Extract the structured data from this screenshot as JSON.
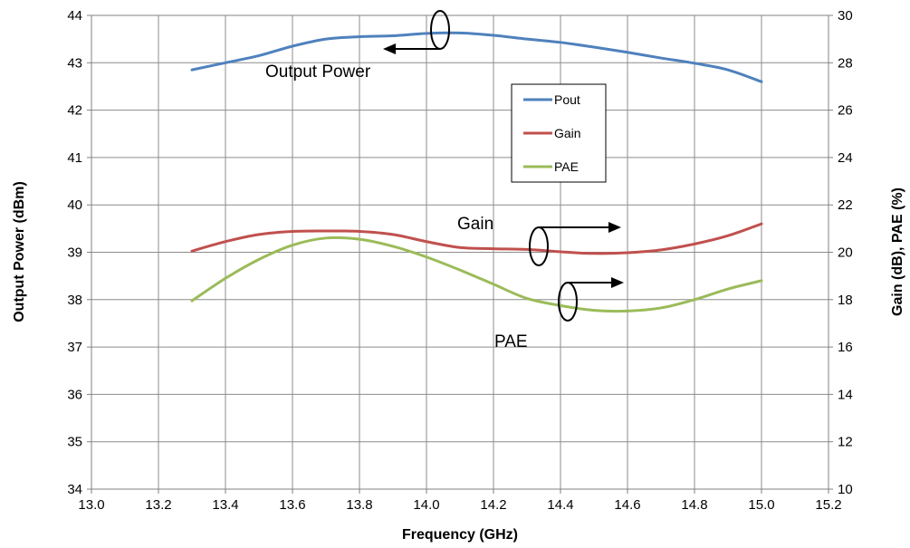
{
  "chart_data": {
    "type": "line",
    "xlabel": "Frequency (GHz)",
    "ylabel_left": "Output Power (dBm)",
    "ylabel_right": "Gain (dB), PAE (%)",
    "xlim": [
      13.0,
      15.2
    ],
    "ylim_left": [
      34,
      44
    ],
    "ylim_right": [
      10,
      30
    ],
    "grid": true,
    "legend_position": "upper-right-center",
    "x_ticks": [
      "13.0",
      "13.2",
      "13.4",
      "13.6",
      "13.8",
      "14.0",
      "14.2",
      "14.4",
      "14.6",
      "14.8",
      "15.0",
      "15.2"
    ],
    "y_left_ticks": [
      "34",
      "35",
      "36",
      "37",
      "38",
      "39",
      "40",
      "41",
      "42",
      "43",
      "44"
    ],
    "y_right_ticks": [
      "10",
      "12",
      "14",
      "16",
      "18",
      "20",
      "22",
      "24",
      "26",
      "28",
      "30"
    ],
    "series": [
      {
        "name": "Pout",
        "axis": "left",
        "color": "#4f81bd",
        "x": [
          13.3,
          13.4,
          13.5,
          13.6,
          13.7,
          13.8,
          13.9,
          14.0,
          14.1,
          14.2,
          14.3,
          14.4,
          14.5,
          14.6,
          14.7,
          14.8,
          14.9,
          15.0
        ],
        "y": [
          42.85,
          43.0,
          43.15,
          43.35,
          43.5,
          43.55,
          43.57,
          43.62,
          43.63,
          43.58,
          43.5,
          43.43,
          43.33,
          43.22,
          43.1,
          42.99,
          42.85,
          42.6
        ]
      },
      {
        "name": "Gain",
        "axis": "right",
        "color": "#c0504d",
        "x": [
          13.3,
          13.4,
          13.5,
          13.6,
          13.7,
          13.8,
          13.9,
          14.0,
          14.1,
          14.2,
          14.3,
          14.4,
          14.5,
          14.6,
          14.7,
          14.8,
          14.9,
          15.0
        ],
        "y": [
          20.05,
          20.45,
          20.75,
          20.88,
          20.9,
          20.88,
          20.75,
          20.45,
          20.2,
          20.15,
          20.12,
          20.02,
          19.95,
          19.98,
          20.1,
          20.35,
          20.7,
          21.2
        ]
      },
      {
        "name": "PAE",
        "axis": "right",
        "color": "#9bbb59",
        "x": [
          13.3,
          13.4,
          13.5,
          13.6,
          13.7,
          13.8,
          13.9,
          14.0,
          14.1,
          14.2,
          14.3,
          14.4,
          14.5,
          14.6,
          14.7,
          14.8,
          14.9,
          15.0
        ],
        "y": [
          17.95,
          18.9,
          19.7,
          20.3,
          20.6,
          20.55,
          20.25,
          19.8,
          19.25,
          18.65,
          18.05,
          17.75,
          17.55,
          17.52,
          17.65,
          18.0,
          18.45,
          18.8
        ]
      }
    ],
    "annotations": [
      "Output Power",
      "Gain",
      "PAE"
    ]
  }
}
